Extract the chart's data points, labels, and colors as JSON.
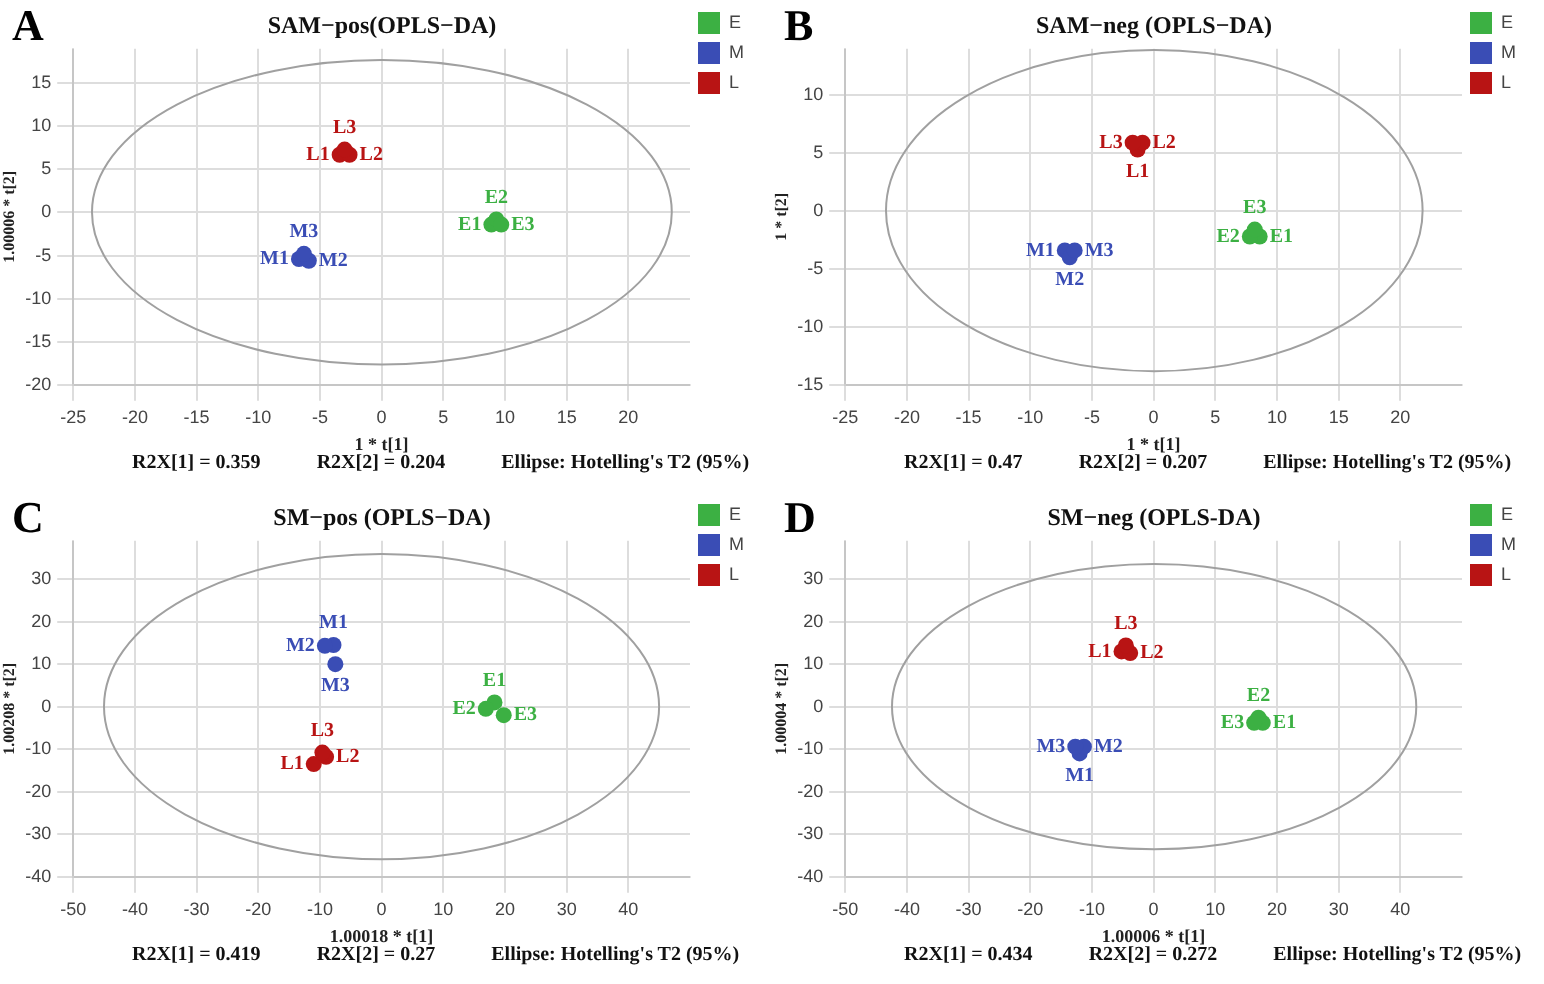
{
  "chart_data": [
    {
      "type": "scatter",
      "title": "SAM−pos(OPLS−DA)",
      "xlabel": "1 * t[1]",
      "ylabel": "1.00006 * t[2]",
      "xlim": [
        -25,
        25
      ],
      "xticks": [
        -25,
        -20,
        -15,
        -10,
        -5,
        0,
        5,
        10,
        15,
        20
      ],
      "ylim": [
        -20,
        19
      ],
      "yticks": [
        -20,
        -15,
        -10,
        -5,
        0,
        5,
        10,
        15
      ],
      "grid": true,
      "legend": "top right",
      "marker": "circle",
      "series": [
        {
          "name": "E",
          "color": "#3cb043",
          "x": [
            8.9,
            9.3,
            9.7
          ],
          "values": [
            -1.4,
            -0.8,
            -1.4
          ],
          "value_labels": [
            "E1",
            "E2",
            "E3"
          ]
        },
        {
          "name": "M",
          "color": "#3a4db5",
          "x": [
            -6.7,
            -5.9,
            -6.3
          ],
          "values": [
            -5.4,
            -5.6,
            -4.8
          ],
          "value_labels": [
            "M1",
            "M2",
            "M3"
          ]
        },
        {
          "name": "L",
          "color": "#b81414",
          "x": [
            -3.4,
            -2.6,
            -3.0
          ],
          "values": [
            6.7,
            6.7,
            7.3
          ],
          "value_labels": [
            "L1",
            "L2",
            "L3"
          ]
        }
      ],
      "annotations": [
        "A",
        "R2X[1] = 0.359",
        "R2X[2] = 0.204",
        "Ellipse: Hotelling's T2 (95%)"
      ]
    },
    {
      "type": "scatter",
      "title": "SAM−neg (OPLS−DA)",
      "xlabel": "1 * t[1]",
      "ylabel": "1 * t[2]",
      "xlim": [
        -25,
        25
      ],
      "xticks": [
        -25,
        -20,
        -15,
        -10,
        -5,
        0,
        5,
        10,
        15,
        20
      ],
      "ylim": [
        -15,
        14
      ],
      "yticks": [
        -15,
        -10,
        -5,
        0,
        5,
        10
      ],
      "grid": true,
      "legend": "top right",
      "marker": "circle",
      "series": [
        {
          "name": "E",
          "color": "#3cb043",
          "x": [
            8.6,
            7.8,
            8.2
          ],
          "values": [
            -2.2,
            -2.2,
            -1.6
          ],
          "value_labels": [
            "E1",
            "E2",
            "E3"
          ]
        },
        {
          "name": "M",
          "color": "#3a4db5",
          "x": [
            -7.2,
            -6.8,
            -6.4
          ],
          "values": [
            -3.4,
            -4.0,
            -3.4
          ],
          "value_labels": [
            "M1",
            "M2",
            "M3"
          ]
        },
        {
          "name": "L",
          "color": "#b81414",
          "x": [
            -1.3,
            -0.9,
            -1.7
          ],
          "values": [
            5.3,
            5.9,
            5.9
          ],
          "value_labels": [
            "L1",
            "L2",
            "L3"
          ]
        }
      ],
      "annotations": [
        "B",
        "R2X[1] = 0.47",
        "R2X[2] = 0.207",
        "Ellipse: Hotelling's T2 (95%)"
      ]
    },
    {
      "type": "scatter",
      "title": "SM−pos (OPLS−DA)",
      "xlabel": "1.00018 * t[1]",
      "ylabel": "1.00208 * t[2]",
      "xlim": [
        -50,
        50
      ],
      "xticks": [
        -50,
        -40,
        -30,
        -20,
        -10,
        0,
        10,
        20,
        30,
        40
      ],
      "ylim": [
        -40,
        39
      ],
      "yticks": [
        -40,
        -30,
        -20,
        -10,
        0,
        10,
        20,
        30
      ],
      "grid": true,
      "legend": "top right",
      "marker": "circle",
      "series": [
        {
          "name": "E",
          "color": "#3cb043",
          "x": [
            18.3,
            16.9,
            19.8
          ],
          "values": [
            1.0,
            -0.5,
            -2.0
          ],
          "value_labels": [
            "E1",
            "E2",
            "E3"
          ]
        },
        {
          "name": "M",
          "color": "#3a4db5",
          "x": [
            -7.8,
            -9.2,
            -7.5
          ],
          "values": [
            14.5,
            14.3,
            10.0
          ],
          "value_labels": [
            "M1",
            "M2",
            "M3"
          ]
        },
        {
          "name": "L",
          "color": "#b81414",
          "x": [
            -11.0,
            -9.0,
            -9.6
          ],
          "values": [
            -13.5,
            -11.8,
            -10.8
          ],
          "value_labels": [
            "L1",
            "L2",
            "L3"
          ]
        }
      ],
      "annotations": [
        "C",
        "R2X[1] = 0.419",
        "R2X[2] = 0.27",
        "Ellipse: Hotelling's T2 (95%)"
      ]
    },
    {
      "type": "scatter",
      "title": "SM−neg (OPLS-DA)",
      "xlabel": "1.00006 * t[1]",
      "ylabel": "1.00004 * t[2]",
      "xlim": [
        -50,
        50
      ],
      "xticks": [
        -50,
        -40,
        -30,
        -20,
        -10,
        0,
        10,
        20,
        30,
        40
      ],
      "ylim": [
        -40,
        39
      ],
      "yticks": [
        -40,
        -30,
        -20,
        -10,
        0,
        10,
        20,
        30
      ],
      "grid": true,
      "legend": "top right",
      "marker": "circle",
      "series": [
        {
          "name": "E",
          "color": "#3cb043",
          "x": [
            17.7,
            17.0,
            16.3
          ],
          "values": [
            -3.8,
            -2.6,
            -3.8
          ],
          "value_labels": [
            "E1",
            "E2",
            "E3"
          ]
        },
        {
          "name": "M",
          "color": "#3a4db5",
          "x": [
            -12.0,
            -11.3,
            -12.7
          ],
          "values": [
            -11.0,
            -9.4,
            -9.4
          ],
          "value_labels": [
            "M1",
            "M2",
            "M3"
          ]
        },
        {
          "name": "L",
          "color": "#b81414",
          "x": [
            -5.2,
            -3.8,
            -4.5
          ],
          "values": [
            13.0,
            12.6,
            14.4
          ],
          "value_labels": [
            "L1",
            "L2",
            "L3"
          ]
        }
      ],
      "annotations": [
        "D",
        "R2X[1] = 0.434",
        "R2X[2] = 0.272",
        "Ellipse: Hotelling's T2 (95%)"
      ]
    }
  ]
}
